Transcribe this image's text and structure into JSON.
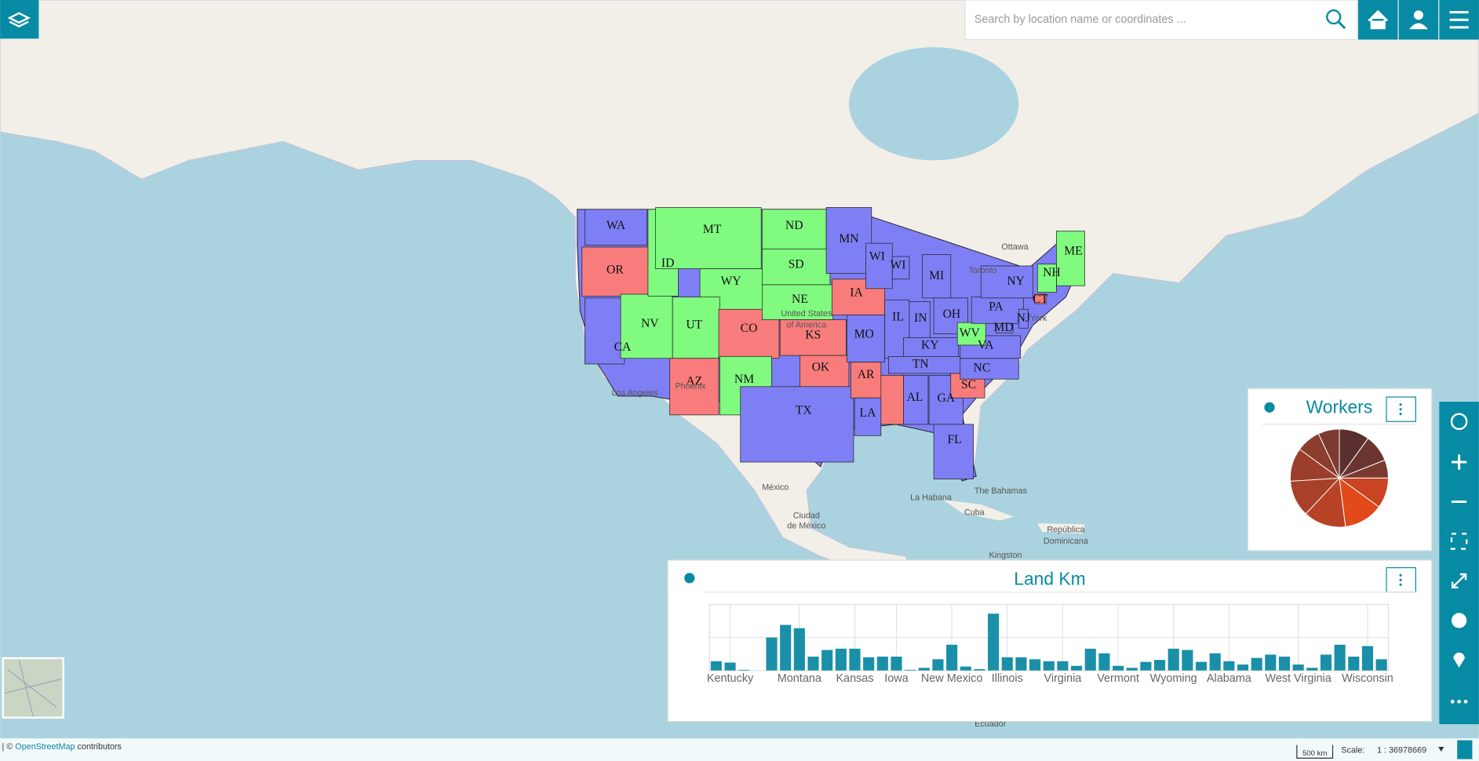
{
  "search": {
    "placeholder": "Search by location name or coordinates ..."
  },
  "map": {
    "states": [
      {
        "label": "WA",
        "color": "#7f7ff5"
      },
      {
        "label": "OR",
        "color": "#f87c7c"
      },
      {
        "label": "CA",
        "color": "#7f7ff5"
      },
      {
        "label": "NV",
        "color": "#80fb80"
      },
      {
        "label": "ID",
        "color": "#80fb80"
      },
      {
        "label": "MT",
        "color": "#80fb80"
      },
      {
        "label": "WY",
        "color": "#80fb80"
      },
      {
        "label": "UT",
        "color": "#80fb80"
      },
      {
        "label": "CO",
        "color": "#f87c7c"
      },
      {
        "label": "AZ",
        "color": "#f87c7c"
      },
      {
        "label": "NM",
        "color": "#80fb80"
      },
      {
        "label": "ND",
        "color": "#80fb80"
      },
      {
        "label": "SD",
        "color": "#80fb80"
      },
      {
        "label": "NE",
        "color": "#80fb80"
      },
      {
        "label": "KS",
        "color": "#f87c7c"
      },
      {
        "label": "OK",
        "color": "#f87c7c"
      },
      {
        "label": "TX",
        "color": "#7f7ff5"
      },
      {
        "label": "MN",
        "color": "#7f7ff5"
      },
      {
        "label": "IA",
        "color": "#f87c7c"
      },
      {
        "label": "MO",
        "color": "#7f7ff5"
      },
      {
        "label": "AR",
        "color": "#f87c7c"
      },
      {
        "label": "LA",
        "color": "#7f7ff5"
      },
      {
        "label": "WI",
        "color": "#7f7ff5"
      },
      {
        "label": "WI",
        "color": "#7f7ff5"
      },
      {
        "label": "IL",
        "color": "#7f7ff5"
      },
      {
        "label": "MI",
        "color": "#7f7ff5"
      },
      {
        "label": "IN",
        "color": "#7f7ff5"
      },
      {
        "label": "OH",
        "color": "#7f7ff5"
      },
      {
        "label": "KY",
        "color": "#7f7ff5"
      },
      {
        "label": "TN",
        "color": "#7f7ff5"
      },
      {
        "label": "AL",
        "color": "#7f7ff5"
      },
      {
        "label": "GA",
        "color": "#7f7ff5"
      },
      {
        "label": "FL",
        "color": "#7f7ff5"
      },
      {
        "label": "SC",
        "color": "#f87c7c"
      },
      {
        "label": "NC",
        "color": "#7f7ff5"
      },
      {
        "label": "VA",
        "color": "#7f7ff5"
      },
      {
        "label": "WV",
        "color": "#80fb80"
      },
      {
        "label": "PA",
        "color": "#7f7ff5"
      },
      {
        "label": "NY",
        "color": "#7f7ff5"
      },
      {
        "label": "ME",
        "color": "#80fb80"
      },
      {
        "label": "NH",
        "color": "#80fb80"
      },
      {
        "label": "MD",
        "color": "#7f7ff5"
      },
      {
        "label": "NJ",
        "color": "#7f7ff5"
      },
      {
        "label": "CT",
        "color": "#f87c7c"
      }
    ],
    "places": [
      "Ottawa",
      "Toronto",
      "York",
      "Los Angeles",
      "Phoenix",
      "United States",
      "of America",
      "México",
      "Ciudad",
      "de México",
      "La Habana",
      "The Bahamas",
      "Cuba",
      "República",
      "Dominicana",
      "Kingston",
      "Ecuador"
    ]
  },
  "chart_data": [
    {
      "type": "pie",
      "title": "Workers",
      "values": [
        10,
        9,
        6,
        10,
        13,
        14,
        12,
        11,
        8,
        7
      ],
      "colors": [
        "#5a2f2e",
        "#6a3530",
        "#7a3a30",
        "#c84422",
        "#e24a1a",
        "#b84226",
        "#a9402a",
        "#9b3f2c",
        "#8b3d2e",
        "#7d3a31"
      ]
    },
    {
      "type": "bar",
      "title": "Land Km",
      "color": "#1a8fa8",
      "categories": [
        null,
        "Kentucky",
        null,
        null,
        null,
        null,
        "Montana",
        null,
        null,
        null,
        "Kansas",
        null,
        null,
        "Iowa",
        null,
        null,
        null,
        "New Mexico",
        null,
        null,
        null,
        "Illinois",
        null,
        null,
        null,
        "Virginia",
        null,
        null,
        null,
        "Vermont",
        null,
        null,
        null,
        "Wyoming",
        null,
        null,
        null,
        "Alabama",
        null,
        null,
        null,
        null,
        "West Virginia",
        null,
        null,
        null,
        null,
        "Wisconsin",
        null
      ],
      "values": [
        14,
        12,
        1,
        0,
        50,
        69,
        64,
        21,
        31,
        33,
        33,
        20,
        21,
        21,
        1,
        4,
        17,
        39,
        6,
        2,
        86,
        20,
        20,
        17,
        14,
        14,
        7,
        33,
        26,
        7,
        4,
        13,
        16,
        33,
        31,
        13,
        26,
        14,
        9,
        19,
        24,
        21,
        9,
        4,
        24,
        39,
        21,
        37,
        17
      ],
      "ylim": [
        0,
        100
      ],
      "yticks": [
        0,
        50,
        100
      ],
      "grid": true
    }
  ],
  "footer": {
    "prefix": "| © ",
    "link": "OpenStreetMap",
    "suffix": " contributors",
    "scalebar": "500 km",
    "scale_label": "Scale:",
    "scale_value": "1 : 36978669"
  }
}
